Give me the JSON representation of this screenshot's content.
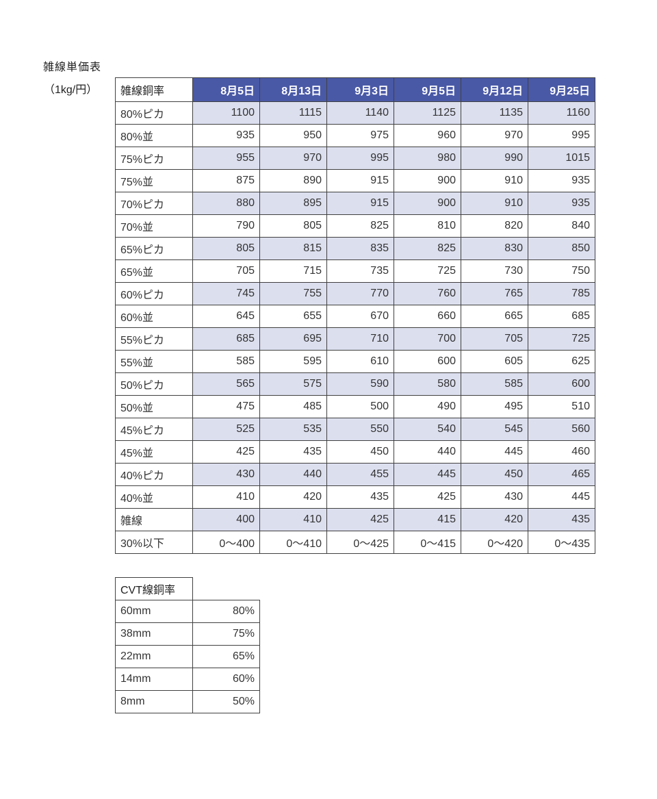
{
  "title": "雑線単価表",
  "subtitle": "（1kg/円）",
  "main_table": {
    "corner_header": "雑線銅率",
    "date_headers": [
      "8月5日",
      "8月13日",
      "9月3日",
      "9月5日",
      "9月12日",
      "9月25日"
    ],
    "rows": [
      {
        "label": "80%ピカ",
        "values": [
          "1100",
          "1115",
          "1140",
          "1125",
          "1135",
          "1160"
        ],
        "shaded": true
      },
      {
        "label": "80%並",
        "values": [
          "935",
          "950",
          "975",
          "960",
          "970",
          "995"
        ],
        "shaded": false
      },
      {
        "label": "75%ピカ",
        "values": [
          "955",
          "970",
          "995",
          "980",
          "990",
          "1015"
        ],
        "shaded": true
      },
      {
        "label": "75%並",
        "values": [
          "875",
          "890",
          "915",
          "900",
          "910",
          "935"
        ],
        "shaded": false
      },
      {
        "label": "70%ピカ",
        "values": [
          "880",
          "895",
          "915",
          "900",
          "910",
          "935"
        ],
        "shaded": true
      },
      {
        "label": "70%並",
        "values": [
          "790",
          "805",
          "825",
          "810",
          "820",
          "840"
        ],
        "shaded": false
      },
      {
        "label": "65%ピカ",
        "values": [
          "805",
          "815",
          "835",
          "825",
          "830",
          "850"
        ],
        "shaded": true
      },
      {
        "label": "65%並",
        "values": [
          "705",
          "715",
          "735",
          "725",
          "730",
          "750"
        ],
        "shaded": false
      },
      {
        "label": "60%ピカ",
        "values": [
          "745",
          "755",
          "770",
          "760",
          "765",
          "785"
        ],
        "shaded": true
      },
      {
        "label": "60%並",
        "values": [
          "645",
          "655",
          "670",
          "660",
          "665",
          "685"
        ],
        "shaded": false
      },
      {
        "label": "55%ピカ",
        "values": [
          "685",
          "695",
          "710",
          "700",
          "705",
          "725"
        ],
        "shaded": true
      },
      {
        "label": "55%並",
        "values": [
          "585",
          "595",
          "610",
          "600",
          "605",
          "625"
        ],
        "shaded": false
      },
      {
        "label": "50%ピカ",
        "values": [
          "565",
          "575",
          "590",
          "580",
          "585",
          "600"
        ],
        "shaded": true
      },
      {
        "label": "50%並",
        "values": [
          "475",
          "485",
          "500",
          "490",
          "495",
          "510"
        ],
        "shaded": false
      },
      {
        "label": "45%ピカ",
        "values": [
          "525",
          "535",
          "550",
          "540",
          "545",
          "560"
        ],
        "shaded": true
      },
      {
        "label": "45%並",
        "values": [
          "425",
          "435",
          "450",
          "440",
          "445",
          "460"
        ],
        "shaded": false
      },
      {
        "label": "40%ピカ",
        "values": [
          "430",
          "440",
          "455",
          "445",
          "450",
          "465"
        ],
        "shaded": true
      },
      {
        "label": "40%並",
        "values": [
          "410",
          "420",
          "435",
          "425",
          "430",
          "445"
        ],
        "shaded": false
      },
      {
        "label": "雑線",
        "values": [
          "400",
          "410",
          "425",
          "415",
          "420",
          "435"
        ],
        "shaded": true
      },
      {
        "label": "30%以下",
        "values": [
          "0～400",
          "0～410",
          "0～425",
          "0～415",
          "0～420",
          "0～435"
        ],
        "shaded": false
      }
    ]
  },
  "cvt_table": {
    "header": "CVT線銅率",
    "rows": [
      {
        "label": "60mm",
        "value": "80%"
      },
      {
        "label": "38mm",
        "value": "75%"
      },
      {
        "label": "22mm",
        "value": "65%"
      },
      {
        "label": "14mm",
        "value": "60%"
      },
      {
        "label": "8mm",
        "value": "50%"
      }
    ]
  },
  "colors": {
    "header_bg": "#4a59a6",
    "header_text": "#ffffff",
    "band_bg": "#dcdfee",
    "border": "#404040",
    "text": "#333333"
  }
}
